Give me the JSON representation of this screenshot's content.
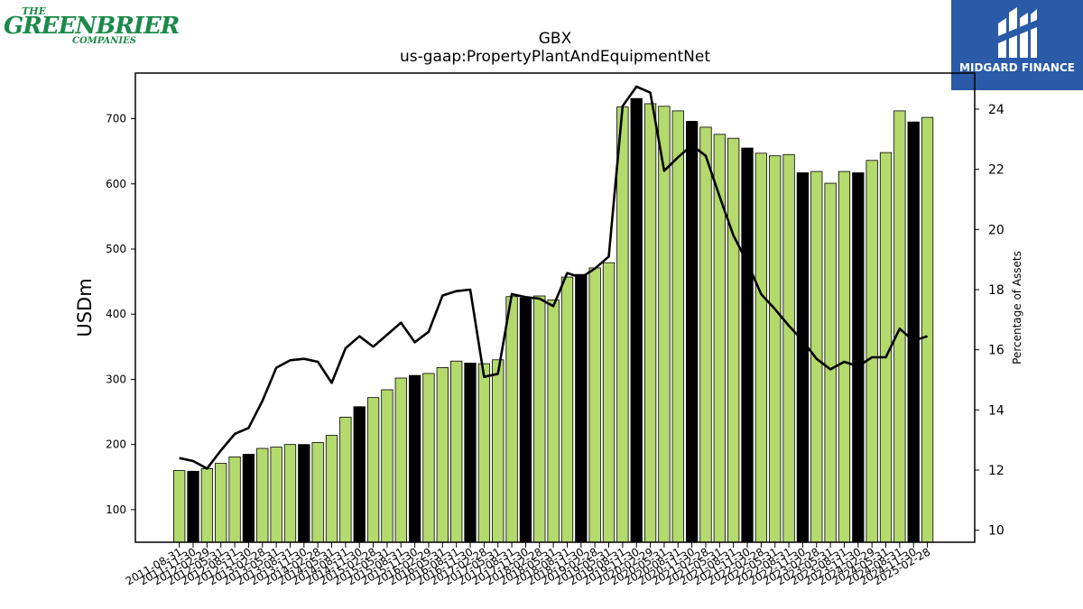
{
  "logos": {
    "left_line1": "THE",
    "left_line2": "GREENBRIER",
    "left_line3": "COMPANIES",
    "right_text": "MIDGARD FINANCE",
    "right_icon": "midgard-m-icon"
  },
  "colors": {
    "bar_default": "#b4d96d",
    "bar_highlight": "#000000",
    "line": "#000000",
    "left_logo": "#1a8a4a",
    "right_logo_bg": "#2a5aa8"
  },
  "chart_data": {
    "type": "bar",
    "title": "GBX",
    "subtitle": "us-gaap:PropertyPlantAndEquipmentNet",
    "ylabel": "USDm",
    "y2label": "Percentage of Assets",
    "ylim": [
      50,
      770
    ],
    "y2lim": [
      9.6,
      25.2
    ],
    "yticks": [
      100,
      200,
      300,
      400,
      500,
      600,
      700
    ],
    "y2ticks": [
      10,
      12,
      14,
      16,
      18,
      20,
      22,
      24
    ],
    "categories": [
      "2011-08-31",
      "2011-11-30",
      "2012-02-29",
      "2012-05-31",
      "2012-08-31",
      "2012-11-30",
      "2013-02-28",
      "2013-05-31",
      "2013-08-31",
      "2013-11-30",
      "2014-02-28",
      "2014-05-31",
      "2014-08-31",
      "2014-11-30",
      "2015-02-28",
      "2015-05-31",
      "2015-08-31",
      "2015-11-30",
      "2016-02-29",
      "2016-05-31",
      "2016-08-31",
      "2016-11-30",
      "2017-02-28",
      "2017-05-31",
      "2017-08-31",
      "2017-11-30",
      "2018-02-28",
      "2018-05-31",
      "2018-08-31",
      "2018-11-30",
      "2019-02-28",
      "2019-05-31",
      "2019-08-31",
      "2019-11-30",
      "2020-02-29",
      "2020-05-31",
      "2020-08-31",
      "2020-11-30",
      "2021-02-28",
      "2021-05-31",
      "2021-08-31",
      "2021-11-30",
      "2022-02-28",
      "2022-05-31",
      "2022-08-31",
      "2022-11-30",
      "2023-02-28",
      "2023-05-31",
      "2023-08-31",
      "2023-11-30",
      "2024-02-29",
      "2024-05-31",
      "2024-08-31",
      "2024-11-30",
      "2025-02-28"
    ],
    "series": [
      {
        "type": "bar",
        "values": [
          160,
          159,
          163,
          171,
          181,
          185,
          194,
          196,
          200,
          200,
          203,
          214,
          242,
          258,
          272,
          284,
          302,
          306,
          309,
          318,
          328,
          325,
          324,
          330,
          427,
          425,
          428,
          422,
          457,
          461,
          471,
          479,
          718,
          731,
          723,
          719,
          712,
          696,
          687,
          676,
          670,
          655,
          647,
          643,
          645,
          617,
          619,
          601,
          619,
          617,
          636,
          648,
          712,
          695,
          702
        ],
        "highlight": [
          false,
          true,
          false,
          false,
          false,
          true,
          false,
          false,
          false,
          true,
          false,
          false,
          false,
          true,
          false,
          false,
          false,
          true,
          false,
          false,
          false,
          true,
          false,
          false,
          false,
          true,
          false,
          false,
          false,
          true,
          false,
          false,
          false,
          true,
          false,
          false,
          false,
          true,
          false,
          false,
          false,
          true,
          false,
          false,
          false,
          true,
          false,
          false,
          false,
          true,
          false,
          false,
          false,
          true,
          false
        ]
      },
      {
        "type": "line",
        "axis": "right",
        "values": [
          12.4,
          12.3,
          12.05,
          12.65,
          13.2,
          13.4,
          14.3,
          15.4,
          15.65,
          15.7,
          15.6,
          14.9,
          16.05,
          16.45,
          16.1,
          16.5,
          16.9,
          16.25,
          16.6,
          17.8,
          17.95,
          18.0,
          15.1,
          15.2,
          17.85,
          17.75,
          17.7,
          17.45,
          18.55,
          18.4,
          18.7,
          19.1,
          24.1,
          24.75,
          24.55,
          21.95,
          22.4,
          22.8,
          22.45,
          21.1,
          19.8,
          18.9,
          17.85,
          17.35,
          16.8,
          16.3,
          15.7,
          15.35,
          15.6,
          15.45,
          15.75,
          15.75,
          16.7,
          16.3,
          16.45
        ]
      }
    ],
    "grid": false,
    "legend": "none"
  }
}
